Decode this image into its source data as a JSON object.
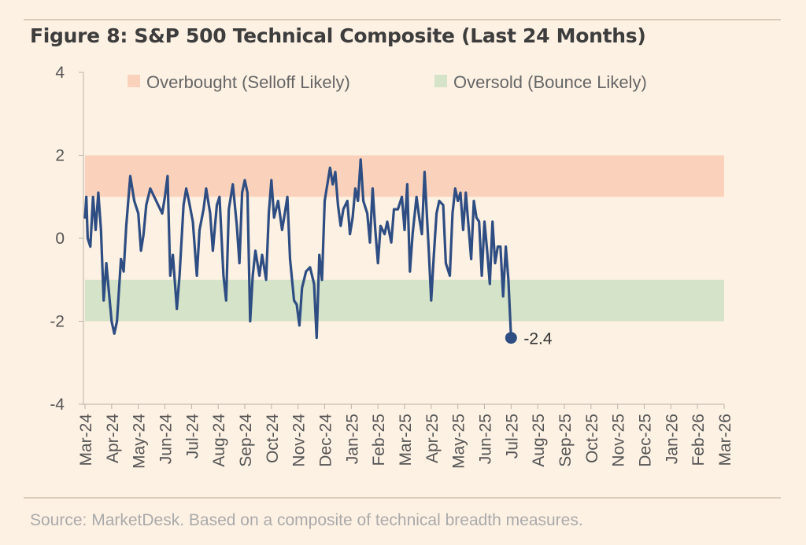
{
  "colors": {
    "background": "#fdf1e3",
    "overbought_band": "#fad2bc",
    "oversold_band": "#d5e3c9",
    "line": "#2e4d82",
    "axis_text": "#555555"
  },
  "header": {
    "title": "Figure 8: S&P 500 Technical Composite (Last 24 Months)"
  },
  "footer": {
    "source": "Source: MarketDesk. Based on a composite of technical breadth measures."
  },
  "chart_data": {
    "type": "line",
    "title": "Figure 8: S&P 500 Technical Composite (Last 24 Months)",
    "xlabel": "",
    "ylabel": "",
    "ylim": [
      -4,
      4
    ],
    "yticks": [
      "4",
      "2",
      "0",
      "-2",
      "-4"
    ],
    "grid": false,
    "legend_position": "top",
    "bands": [
      {
        "name": "Overbought (Selloff Likely)",
        "from": 1,
        "to": 2,
        "color": "#fad2bc"
      },
      {
        "name": "Oversold (Bounce Likely)",
        "from": -2,
        "to": -1,
        "color": "#d5e3c9"
      }
    ],
    "categories": [
      "Mar-24",
      "Apr-24",
      "May-24",
      "Jun-24",
      "Jul-24",
      "Aug-24",
      "Sep-24",
      "Oct-24",
      "Nov-24",
      "Dec-24",
      "Jan-25",
      "Feb-25",
      "Mar-25",
      "Apr-25",
      "May-25",
      "Jun-25",
      "Jul-25",
      "Aug-25",
      "Sep-25",
      "Oct-25",
      "Nov-25",
      "Dec-25",
      "Jan-26",
      "Feb-26",
      "Mar-26"
    ],
    "series": [
      {
        "name": "S&P 500 Technical Composite",
        "color": "#2e4d82",
        "points": [
          [
            0.0,
            0.5
          ],
          [
            0.05,
            1.0
          ],
          [
            0.1,
            0.0
          ],
          [
            0.2,
            -0.2
          ],
          [
            0.3,
            1.0
          ],
          [
            0.4,
            0.2
          ],
          [
            0.5,
            1.1
          ],
          [
            0.6,
            0.2
          ],
          [
            0.7,
            -1.5
          ],
          [
            0.8,
            -0.6
          ],
          [
            0.9,
            -1.3
          ],
          [
            1.0,
            -2.0
          ],
          [
            1.1,
            -2.3
          ],
          [
            1.2,
            -2.0
          ],
          [
            1.35,
            -0.5
          ],
          [
            1.45,
            -0.8
          ],
          [
            1.55,
            0.3
          ],
          [
            1.7,
            1.5
          ],
          [
            1.85,
            0.9
          ],
          [
            2.0,
            0.6
          ],
          [
            2.1,
            -0.3
          ],
          [
            2.2,
            0.1
          ],
          [
            2.3,
            0.8
          ],
          [
            2.45,
            1.2
          ],
          [
            2.6,
            1.0
          ],
          [
            2.75,
            0.8
          ],
          [
            2.9,
            0.6
          ],
          [
            3.0,
            1.0
          ],
          [
            3.1,
            1.5
          ],
          [
            3.2,
            -0.9
          ],
          [
            3.3,
            -0.4
          ],
          [
            3.45,
            -1.7
          ],
          [
            3.55,
            -0.9
          ],
          [
            3.7,
            0.8
          ],
          [
            3.8,
            1.2
          ],
          [
            3.9,
            0.9
          ],
          [
            4.05,
            0.4
          ],
          [
            4.2,
            -0.9
          ],
          [
            4.3,
            0.2
          ],
          [
            4.45,
            0.7
          ],
          [
            4.55,
            1.2
          ],
          [
            4.7,
            0.6
          ],
          [
            4.8,
            -0.3
          ],
          [
            4.95,
            0.8
          ],
          [
            5.05,
            1.0
          ],
          [
            5.2,
            -0.9
          ],
          [
            5.3,
            -1.5
          ],
          [
            5.4,
            0.7
          ],
          [
            5.55,
            1.3
          ],
          [
            5.7,
            0.3
          ],
          [
            5.8,
            -0.6
          ],
          [
            5.9,
            1.1
          ],
          [
            6.0,
            1.4
          ],
          [
            6.1,
            1.1
          ],
          [
            6.2,
            -2.0
          ],
          [
            6.3,
            -0.9
          ],
          [
            6.4,
            -0.3
          ],
          [
            6.55,
            -0.9
          ],
          [
            6.65,
            -0.4
          ],
          [
            6.8,
            -1.0
          ],
          [
            6.9,
            0.6
          ],
          [
            7.0,
            1.4
          ],
          [
            7.1,
            0.5
          ],
          [
            7.25,
            0.9
          ],
          [
            7.4,
            0.2
          ],
          [
            7.5,
            0.6
          ],
          [
            7.6,
            1.0
          ],
          [
            7.7,
            -0.5
          ],
          [
            7.85,
            -1.5
          ],
          [
            7.95,
            -1.6
          ],
          [
            8.05,
            -2.1
          ],
          [
            8.15,
            -1.2
          ],
          [
            8.3,
            -0.8
          ],
          [
            8.45,
            -0.7
          ],
          [
            8.6,
            -1.1
          ],
          [
            8.7,
            -2.4
          ],
          [
            8.8,
            -0.4
          ],
          [
            8.9,
            -1.0
          ],
          [
            9.0,
            0.9
          ],
          [
            9.1,
            1.3
          ],
          [
            9.2,
            1.7
          ],
          [
            9.3,
            1.3
          ],
          [
            9.4,
            1.6
          ],
          [
            9.5,
            0.8
          ],
          [
            9.6,
            0.3
          ],
          [
            9.7,
            0.7
          ],
          [
            9.85,
            0.9
          ],
          [
            9.95,
            0.1
          ],
          [
            10.05,
            0.5
          ],
          [
            10.15,
            1.2
          ],
          [
            10.25,
            0.9
          ],
          [
            10.35,
            1.9
          ],
          [
            10.45,
            0.9
          ],
          [
            10.6,
            0.6
          ],
          [
            10.7,
            -0.1
          ],
          [
            10.8,
            1.2
          ],
          [
            10.9,
            0.2
          ],
          [
            11.0,
            -0.6
          ],
          [
            11.1,
            0.3
          ],
          [
            11.25,
            0.1
          ],
          [
            11.35,
            0.4
          ],
          [
            11.5,
            -0.1
          ],
          [
            11.6,
            0.7
          ],
          [
            11.75,
            0.7
          ],
          [
            11.9,
            1.0
          ],
          [
            12.0,
            0.2
          ],
          [
            12.1,
            1.3
          ],
          [
            12.2,
            -0.8
          ],
          [
            12.3,
            0.1
          ],
          [
            12.45,
            1.0
          ],
          [
            12.55,
            0.5
          ],
          [
            12.65,
            0.1
          ],
          [
            12.75,
            1.6
          ],
          [
            12.9,
            -0.2
          ],
          [
            13.0,
            -1.5
          ],
          [
            13.1,
            -0.4
          ],
          [
            13.2,
            0.6
          ],
          [
            13.3,
            0.9
          ],
          [
            13.45,
            0.8
          ],
          [
            13.55,
            -0.6
          ],
          [
            13.7,
            -0.9
          ],
          [
            13.8,
            0.6
          ],
          [
            13.9,
            1.2
          ],
          [
            14.0,
            0.9
          ],
          [
            14.1,
            1.1
          ],
          [
            14.2,
            0.2
          ],
          [
            14.3,
            1.1
          ],
          [
            14.4,
            0.3
          ],
          [
            14.5,
            -0.5
          ],
          [
            14.6,
            0.9
          ],
          [
            14.7,
            0.5
          ],
          [
            14.8,
            0.4
          ],
          [
            14.9,
            -0.9
          ],
          [
            15.0,
            0.4
          ],
          [
            15.1,
            -0.3
          ],
          [
            15.2,
            -1.1
          ],
          [
            15.3,
            0.4
          ],
          [
            15.4,
            -0.6
          ],
          [
            15.5,
            -0.2
          ],
          [
            15.6,
            -0.2
          ],
          [
            15.7,
            -1.4
          ],
          [
            15.8,
            -0.2
          ],
          [
            15.9,
            -1.0
          ],
          [
            16.0,
            -2.4
          ]
        ],
        "end_label": "-2.4"
      }
    ]
  }
}
